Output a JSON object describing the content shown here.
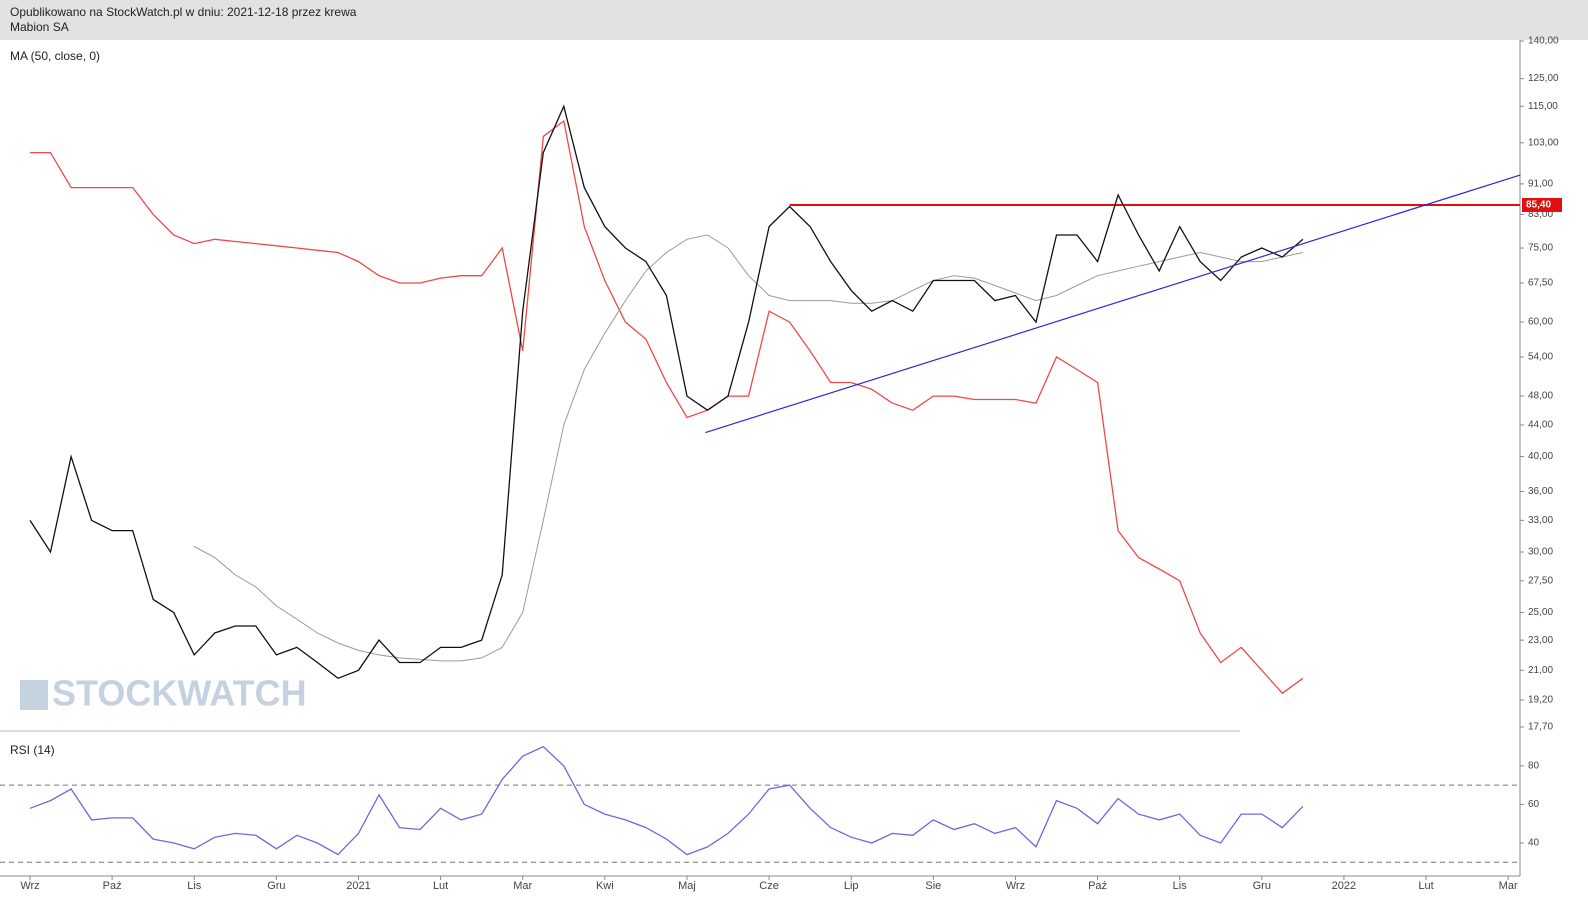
{
  "header": {
    "published": "Opublikowano na StockWatch.pl w dniu: 2021-12-18 przez krewa",
    "name": "Mabion SA"
  },
  "watermark": "STOCKWATCH",
  "chart_data": [
    {
      "type": "line",
      "log_y": true,
      "categories": [
        "Wrz",
        null,
        null,
        null,
        "Paź",
        null,
        null,
        null,
        "Lis",
        null,
        null,
        null,
        "Gru",
        null,
        null,
        null,
        "2021",
        null,
        null,
        null,
        "Lut",
        null,
        null,
        null,
        "Mar",
        null,
        null,
        null,
        "Kwi",
        null,
        null,
        null,
        "Maj",
        null,
        null,
        null,
        "Cze",
        null,
        null,
        null,
        "Lip",
        null,
        null,
        null,
        "Sie",
        null,
        null,
        null,
        "Wrz",
        null,
        null,
        null,
        "Paź",
        null,
        null,
        null,
        "Lis",
        null,
        null,
        null,
        "Gru",
        null,
        null,
        null,
        "2022",
        null,
        null,
        null,
        "Lut",
        null,
        null,
        null,
        "Mar",
        null,
        null,
        null
      ],
      "series": [
        {
          "color": "#f04848",
          "values": [
            100,
            100,
            90,
            90,
            90,
            90,
            83,
            78,
            76,
            77,
            76.5,
            76,
            75.5,
            75,
            74.5,
            74,
            72,
            69,
            67.5,
            67.5,
            68.5,
            69,
            69,
            75,
            55,
            105,
            110,
            80,
            68,
            60,
            57,
            50,
            45,
            46,
            48,
            48,
            62,
            60,
            55,
            50,
            50,
            49,
            47,
            46,
            48,
            48,
            47.5,
            47.5,
            47.5,
            47,
            54,
            52,
            50,
            32,
            29.5,
            28.5,
            27.5,
            23.5,
            21.5,
            22.5,
            21,
            19.6,
            20.5,
            null,
            null,
            null,
            null,
            null,
            null,
            null,
            null,
            null,
            null,
            null,
            null,
            null
          ]
        },
        {
          "name": "MA (50, close, 0)",
          "color": "#9a9a9a",
          "values": [
            null,
            null,
            null,
            null,
            null,
            null,
            null,
            null,
            30.5,
            29.5,
            28,
            27,
            25.5,
            24.5,
            23.5,
            22.8,
            22.3,
            22,
            21.8,
            21.7,
            21.6,
            21.6,
            21.8,
            22.5,
            25,
            33,
            44,
            52,
            58,
            64,
            70,
            74,
            77,
            78,
            75,
            69,
            65,
            64,
            64,
            64,
            63.5,
            63.5,
            64,
            66,
            68,
            69,
            68.5,
            67,
            65.5,
            64,
            65,
            67,
            69,
            70,
            71,
            72,
            73,
            74,
            73,
            72,
            72,
            73,
            74,
            null,
            null,
            null,
            null,
            null,
            null,
            null,
            null,
            null,
            null,
            null,
            null,
            null
          ]
        },
        {
          "color": "#111111",
          "values": [
            33,
            30,
            40,
            33,
            32,
            32,
            26,
            25,
            22,
            23.5,
            24,
            24,
            22,
            22.5,
            21.5,
            20.5,
            21,
            23,
            21.5,
            21.5,
            22.5,
            22.5,
            23,
            28,
            62,
            100,
            115,
            90,
            80,
            75,
            72,
            65,
            48,
            46,
            48,
            60,
            80,
            85,
            80,
            72,
            66,
            62,
            64,
            62,
            68,
            68,
            68,
            64,
            65,
            60,
            78,
            78,
            72,
            88,
            78,
            70,
            80,
            72,
            68,
            73,
            75,
            73,
            77,
            null,
            null,
            null,
            null,
            null,
            null,
            null,
            null,
            null,
            null,
            null,
            null,
            null
          ]
        }
      ],
      "ylim": [
        17.7,
        140
      ],
      "yticks": [
        {
          "value": 17.7,
          "label": "17,70"
        },
        {
          "value": 19.2,
          "label": "19,20"
        },
        {
          "value": 21,
          "label": "21,00"
        },
        {
          "value": 23,
          "label": "23,00"
        },
        {
          "value": 25,
          "label": "25,00"
        },
        {
          "value": 27.5,
          "label": "27,50"
        },
        {
          "value": 30,
          "label": "30,00"
        },
        {
          "value": 33,
          "label": "33,00"
        },
        {
          "value": 36,
          "label": "36,00"
        },
        {
          "value": 40,
          "label": "40,00"
        },
        {
          "value": 44,
          "label": "44,00"
        },
        {
          "value": 48,
          "label": "48,00"
        },
        {
          "value": 54,
          "label": "54,00"
        },
        {
          "value": 60,
          "label": "60,00"
        },
        {
          "value": 67.5,
          "label": "67,50"
        },
        {
          "value": 75,
          "label": "75,00"
        },
        {
          "value": 83,
          "label": "83,00"
        },
        {
          "value": 91,
          "label": "91,00"
        },
        {
          "value": 103,
          "label": "103,00"
        },
        {
          "value": 115,
          "label": "115,00"
        },
        {
          "value": 125,
          "label": "125,00"
        },
        {
          "value": 140,
          "label": "140,00"
        }
      ],
      "hline": {
        "value": 85.4,
        "label": "85,40",
        "color": "#e01010",
        "from": 37
      },
      "trendline": {
        "color": "#2a2ad0",
        "x": [
          32.9,
          72.6
        ],
        "y": [
          43,
          93.5
        ]
      }
    },
    {
      "type": "line",
      "series": [
        {
          "name": "RSI (14)",
          "color": "#6a6ae0",
          "values": [
            58,
            62,
            68,
            52,
            53,
            53,
            42,
            40,
            37,
            43,
            45,
            44,
            37,
            44,
            40,
            34,
            45,
            65,
            48,
            47,
            58,
            52,
            55,
            73,
            85,
            90,
            80,
            60,
            55,
            52,
            48,
            42,
            34,
            38,
            45,
            55,
            68,
            70,
            58,
            48,
            43,
            40,
            45,
            44,
            52,
            47,
            50,
            45,
            48,
            38,
            62,
            58,
            50,
            63,
            55,
            52,
            55,
            44,
            40,
            55,
            55,
            48,
            59,
            null,
            null,
            null,
            null,
            null,
            null,
            null,
            null,
            null,
            null,
            null,
            null,
            null
          ]
        }
      ],
      "ylim": [
        26,
        96
      ],
      "yticks": [
        40,
        60,
        80
      ],
      "levels": [
        30,
        70
      ]
    }
  ]
}
